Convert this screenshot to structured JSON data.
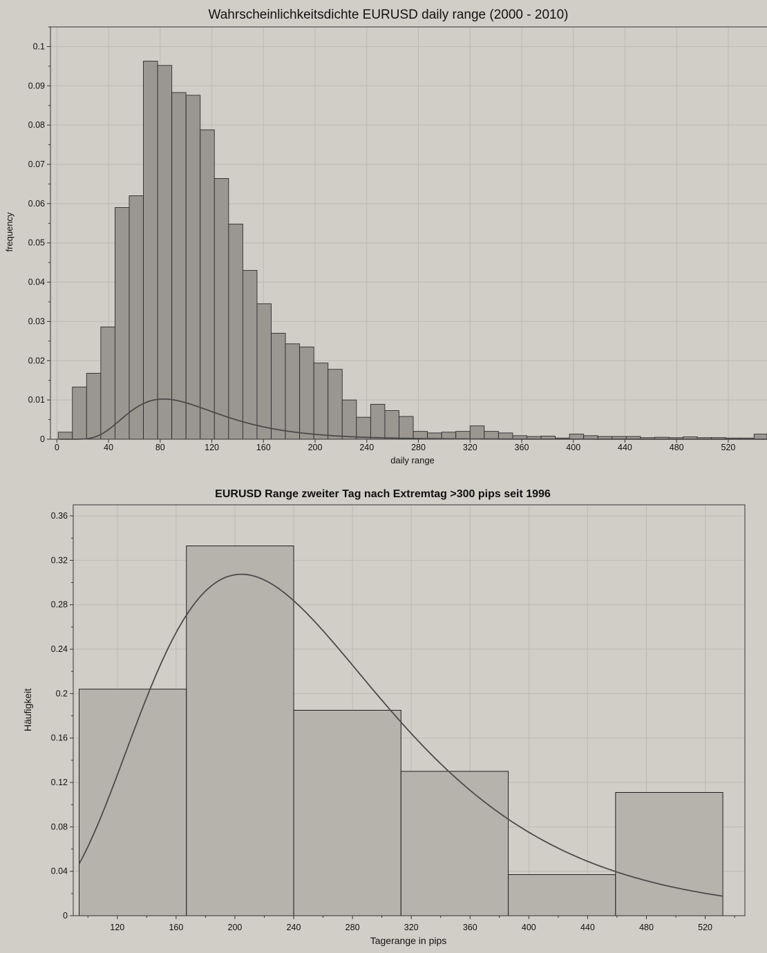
{
  "chart_data": [
    {
      "type": "bar",
      "subtype": "histogram_with_density_curve",
      "title": "Wahrscheinlichkeitsdichte EURUSD daily range (2000 - 2010)",
      "xlabel": "daily range",
      "ylabel": "frequency",
      "xlim": [
        -5,
        550
      ],
      "ylim": [
        0,
        0.105
      ],
      "x_ticks": [
        0,
        40,
        80,
        120,
        160,
        200,
        240,
        280,
        320,
        360,
        400,
        440,
        480,
        520
      ],
      "x_tick_labels": [
        "0",
        "40",
        "80",
        "120",
        "160",
        "200",
        "240",
        "280",
        "320",
        "360",
        "400",
        "440",
        "480",
        "520"
      ],
      "y_ticks": [
        0,
        0.01,
        0.02,
        0.03,
        0.04,
        0.05,
        0.06,
        0.07,
        0.08,
        0.09,
        0.1
      ],
      "y_tick_labels": [
        "0",
        "0.01",
        "0.02",
        "0.03",
        "0.04",
        "0.05",
        "0.06",
        "0.07",
        "0.08",
        "0.09",
        "0.1"
      ],
      "grid": true,
      "bin_width": 11,
      "bin_start": 1,
      "values": [
        0.0018,
        0.0133,
        0.0168,
        0.0286,
        0.059,
        0.062,
        0.0963,
        0.0952,
        0.0883,
        0.0876,
        0.0788,
        0.0664,
        0.0548,
        0.043,
        0.0345,
        0.027,
        0.0243,
        0.0235,
        0.0194,
        0.0178,
        0.01,
        0.0056,
        0.0089,
        0.0073,
        0.0058,
        0.002,
        0.0016,
        0.0018,
        0.002,
        0.0034,
        0.002,
        0.0016,
        0.0009,
        0.0007,
        0.0008,
        0.0003,
        0.0013,
        0.0009,
        0.0007,
        0.0007,
        0.0007,
        0.0004,
        0.0005,
        0.0004,
        0.0006,
        0.0004,
        0.0004,
        0.0003,
        0.0003,
        0.0013,
        0.0004
      ],
      "curve": {
        "type": "lognormal",
        "mu": 4.6,
        "sigma": 0.43
      }
    },
    {
      "type": "bar",
      "subtype": "histogram_with_density_curve",
      "title": "EURUSD Range zweiter Tag nach Extremtag >300 pips seit 1996",
      "xlabel": "Tagerange in pips",
      "ylabel": "Häufigkeit",
      "xlim": [
        90,
        547
      ],
      "ylim": [
        0,
        0.37
      ],
      "x_ticks": [
        120,
        160,
        200,
        240,
        280,
        320,
        360,
        400,
        440,
        480,
        520
      ],
      "x_tick_labels": [
        "120",
        "160",
        "200",
        "240",
        "280",
        "320",
        "360",
        "400",
        "440",
        "480",
        "520"
      ],
      "y_ticks": [
        0,
        0.04,
        0.08,
        0.12,
        0.16,
        0.2,
        0.24,
        0.28,
        0.32,
        0.36
      ],
      "y_tick_labels": [
        "0",
        "0.04",
        "0.08",
        "0.12",
        "0.16",
        "0.2",
        "0.24",
        "0.28",
        "0.32",
        "0.36"
      ],
      "grid": true,
      "bin_edges": [
        94,
        167,
        240,
        313,
        386,
        459,
        532
      ],
      "values": [
        0.204,
        0.333,
        0.185,
        0.13,
        0.037,
        0.111
      ],
      "curve": {
        "type": "lognormal",
        "mu": 5.48,
        "sigma": 0.4,
        "scale": 0.935
      }
    }
  ],
  "colors": {
    "background": "#d1cec7",
    "bar1": "#9a9690",
    "bar2": "#b6b3ad",
    "curve": "#4a4a4a",
    "grid": "#bdbab3"
  }
}
